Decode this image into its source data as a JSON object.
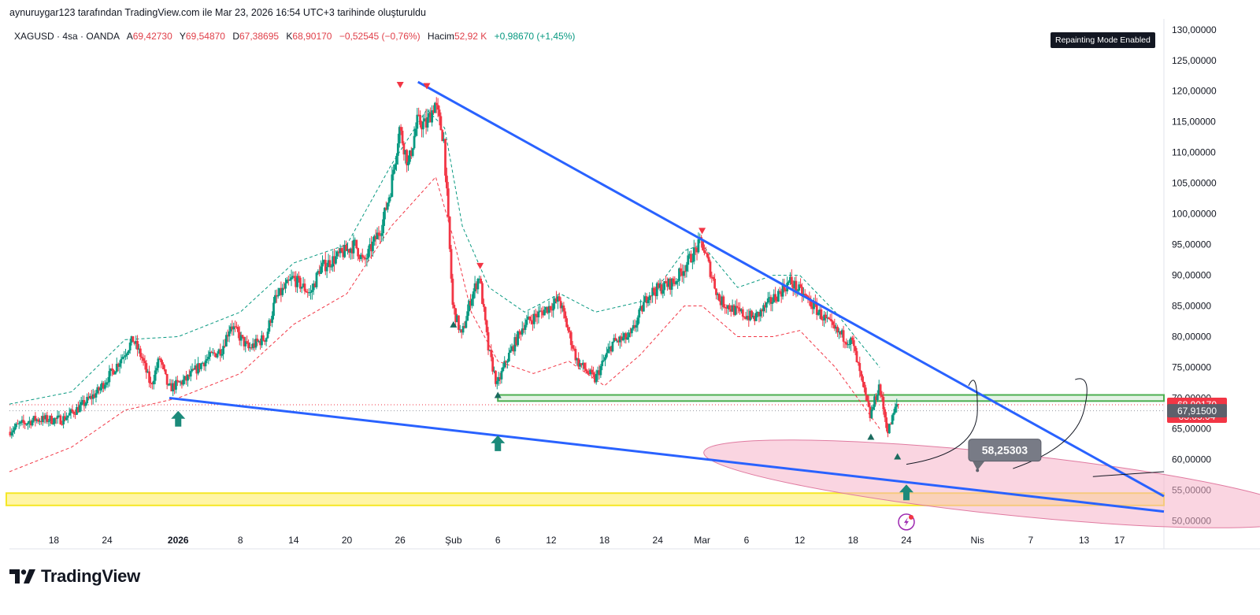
{
  "header": {
    "caption": "aynuruygar123 tarafından TradingView.com ile Mar 23, 2026 16:54 UTC+3 tarihinde oluşturuldu",
    "badge": "Repainting Mode Enabled"
  },
  "legend": {
    "symbol": "XAGUSD · 4sa · OANDA",
    "open_label": "A",
    "open": "69,42730",
    "high_label": "Y",
    "high": "69,54870",
    "low_label": "D",
    "low": "67,38695",
    "close_label": "K",
    "close": "68,90170",
    "change": "−0,52545 (−0,76%)",
    "volume_label": "Hacim",
    "volume": "52,92 K",
    "vol_change": "+0,98670 (+1,45%)"
  },
  "footer": {
    "brand": "TradingView"
  },
  "colors": {
    "up": "#089981",
    "down": "#f23645",
    "trend": "#2962ff",
    "support_zone": "#f5e50f",
    "target_zone": "#f6b3c8",
    "box": "#4caf50"
  },
  "chart_data": {
    "type": "candlestick",
    "symbol": "XAGUSD",
    "timeframe": "4sa",
    "y_axis": {
      "range": [
        48.5,
        131
      ],
      "ticks": [
        50,
        55,
        60,
        65,
        70,
        75,
        80,
        85,
        90,
        95,
        100,
        105,
        110,
        115,
        120,
        125,
        130
      ],
      "tick_labels": [
        "50,00000",
        "55,00000",
        "60,00000",
        "65,00000",
        "70,00000",
        "75,00000",
        "80,00000",
        "85,00000",
        "90,00000",
        "95,00000",
        "100,00000",
        "105,00000",
        "110,00000",
        "115,00000",
        "120,00000",
        "125,00000",
        "130,00000"
      ]
    },
    "x_axis": {
      "range": [
        "2025-12-13",
        "2026-04-22"
      ],
      "ticks": [
        {
          "date": "2025-12-18",
          "label": "18"
        },
        {
          "date": "2025-12-24",
          "label": "24"
        },
        {
          "date": "2026-01-01",
          "label": "2026",
          "bold": true
        },
        {
          "date": "2026-01-08",
          "label": "8"
        },
        {
          "date": "2026-01-14",
          "label": "14"
        },
        {
          "date": "2026-01-20",
          "label": "20"
        },
        {
          "date": "2026-01-26",
          "label": "26"
        },
        {
          "date": "2026-02-01",
          "label": "Şub"
        },
        {
          "date": "2026-02-06",
          "label": "6"
        },
        {
          "date": "2026-02-12",
          "label": "12"
        },
        {
          "date": "2026-02-18",
          "label": "18"
        },
        {
          "date": "2026-02-24",
          "label": "24"
        },
        {
          "date": "2026-03-01",
          "label": "Mar"
        },
        {
          "date": "2026-03-06",
          "label": "6"
        },
        {
          "date": "2026-03-12",
          "label": "12"
        },
        {
          "date": "2026-03-18",
          "label": "18"
        },
        {
          "date": "2026-03-24",
          "label": "24"
        },
        {
          "date": "2026-04-01",
          "label": "Nis"
        },
        {
          "date": "2026-04-07",
          "label": "7"
        },
        {
          "date": "2026-04-13",
          "label": "13"
        },
        {
          "date": "2026-04-17",
          "label": "17"
        }
      ]
    },
    "price_path": [
      [
        "2025-12-13",
        64.5
      ],
      [
        "2025-12-14",
        65.5
      ],
      [
        "2025-12-16",
        66.5
      ],
      [
        "2025-12-19",
        66.5
      ],
      [
        "2025-12-21",
        68.5
      ],
      [
        "2025-12-23",
        71.0
      ],
      [
        "2025-12-25",
        75.0
      ],
      [
        "2025-12-27",
        79.5
      ],
      [
        "2025-12-28",
        76.5
      ],
      [
        "2025-12-29",
        72.0
      ],
      [
        "2025-12-30",
        76.5
      ],
      [
        "2025-12-31",
        71.5
      ],
      [
        "2026-01-02",
        73.0
      ],
      [
        "2026-01-04",
        76.0
      ],
      [
        "2026-01-06",
        78.0
      ],
      [
        "2026-01-07",
        82.0
      ],
      [
        "2026-01-09",
        78.0
      ],
      [
        "2026-01-11",
        80.0
      ],
      [
        "2026-01-12",
        86.0
      ],
      [
        "2026-01-14",
        89.5
      ],
      [
        "2026-01-16",
        87.0
      ],
      [
        "2026-01-17",
        91.0
      ],
      [
        "2026-01-19",
        93.0
      ],
      [
        "2026-01-21",
        95.0
      ],
      [
        "2026-01-22",
        92.0
      ],
      [
        "2026-01-24",
        98.0
      ],
      [
        "2026-01-25",
        104.0
      ],
      [
        "2026-01-26",
        114.0
      ],
      [
        "2026-01-27",
        108.0
      ],
      [
        "2026-01-28",
        115.0
      ],
      [
        "2026-01-29",
        114.5
      ],
      [
        "2026-01-30",
        118.0
      ],
      [
        "2026-01-31",
        112.0
      ],
      [
        "2026-02-01",
        85.0
      ],
      [
        "2026-02-02",
        80.0
      ],
      [
        "2026-02-03",
        86.0
      ],
      [
        "2026-02-04",
        90.0
      ],
      [
        "2026-02-05",
        78.0
      ],
      [
        "2026-02-06",
        72.0
      ],
      [
        "2026-02-07",
        76.0
      ],
      [
        "2026-02-09",
        82.0
      ],
      [
        "2026-02-11",
        84.0
      ],
      [
        "2026-02-13",
        86.0
      ],
      [
        "2026-02-15",
        76.0
      ],
      [
        "2026-02-17",
        73.0
      ],
      [
        "2026-02-19",
        79.0
      ],
      [
        "2026-02-21",
        80.0
      ],
      [
        "2026-02-23",
        87.0
      ],
      [
        "2026-02-26",
        89.0
      ],
      [
        "2026-03-01",
        95.5
      ],
      [
        "2026-03-03",
        86.0
      ],
      [
        "2026-03-05",
        84.0
      ],
      [
        "2026-03-07",
        83.0
      ],
      [
        "2026-03-09",
        86.0
      ],
      [
        "2026-03-11",
        89.0
      ],
      [
        "2026-03-13",
        86.0
      ],
      [
        "2026-03-16",
        81.0
      ],
      [
        "2026-03-18",
        79.0
      ],
      [
        "2026-03-19",
        73.0
      ],
      [
        "2026-03-20",
        67.0
      ],
      [
        "2026-03-21",
        72.0
      ],
      [
        "2026-03-22",
        64.5
      ],
      [
        "2026-03-23",
        68.9
      ]
    ],
    "envelope_upper": [
      [
        "2025-12-13",
        69.0
      ],
      [
        "2025-12-20",
        71.0
      ],
      [
        "2025-12-26",
        79.5
      ],
      [
        "2026-01-01",
        80.0
      ],
      [
        "2026-01-08",
        84.0
      ],
      [
        "2026-01-14",
        92.0
      ],
      [
        "2026-01-20",
        95.0
      ],
      [
        "2026-01-25",
        108.0
      ],
      [
        "2026-01-29",
        117.0
      ],
      [
        "2026-01-31",
        114.0
      ],
      [
        "2026-02-02",
        98.0
      ],
      [
        "2026-02-05",
        88.0
      ],
      [
        "2026-02-09",
        84.0
      ],
      [
        "2026-02-13",
        87.0
      ],
      [
        "2026-02-17",
        84.0
      ],
      [
        "2026-02-23",
        86.0
      ],
      [
        "2026-02-27",
        94.0
      ],
      [
        "2026-03-01",
        95.0
      ],
      [
        "2026-03-05",
        88.0
      ],
      [
        "2026-03-09",
        90.0
      ],
      [
        "2026-03-12",
        90.0
      ],
      [
        "2026-03-16",
        84.0
      ],
      [
        "2026-03-21",
        75.0
      ]
    ],
    "envelope_lower": [
      [
        "2025-12-13",
        58.0
      ],
      [
        "2025-12-20",
        62.0
      ],
      [
        "2025-12-26",
        68.0
      ],
      [
        "2026-01-01",
        70.0
      ],
      [
        "2026-01-08",
        74.0
      ],
      [
        "2026-01-14",
        82.0
      ],
      [
        "2026-01-20",
        87.0
      ],
      [
        "2026-01-25",
        98.0
      ],
      [
        "2026-01-30",
        106.0
      ],
      [
        "2026-02-01",
        96.0
      ],
      [
        "2026-02-03",
        84.0
      ],
      [
        "2026-02-06",
        76.0
      ],
      [
        "2026-02-10",
        74.0
      ],
      [
        "2026-02-14",
        76.0
      ],
      [
        "2026-02-18",
        72.0
      ],
      [
        "2026-02-22",
        77.0
      ],
      [
        "2026-02-27",
        85.0
      ],
      [
        "2026-03-01",
        85.0
      ],
      [
        "2026-03-05",
        80.0
      ],
      [
        "2026-03-09",
        80.0
      ],
      [
        "2026-03-12",
        81.0
      ],
      [
        "2026-03-16",
        75.0
      ],
      [
        "2026-03-21",
        65.0
      ]
    ],
    "trendlines": [
      {
        "name": "upper",
        "from": [
          "2026-01-28",
          121.5
        ],
        "to": [
          "2026-04-22",
          54.0
        ]
      },
      {
        "name": "lower",
        "from": [
          "2025-12-31",
          70.0
        ],
        "to": [
          "2026-04-22",
          51.5
        ]
      }
    ],
    "zones": [
      {
        "name": "support-band",
        "y": [
          52.5,
          54.5
        ],
        "x": [
          "2025-12-13",
          "2026-04-22"
        ]
      },
      {
        "name": "resistance-box",
        "y": [
          69.5,
          70.5
        ],
        "x": [
          "2026-02-06",
          "2026-04-22"
        ]
      },
      {
        "name": "target-ellipse",
        "center": [
          "2026-04-04",
          56.0
        ],
        "rx_days": 34,
        "ry_price": 5.0
      }
    ],
    "markers": {
      "arrows_up": [
        [
          "2026-01-01",
          66.5
        ],
        [
          "2026-02-06",
          62.5
        ],
        [
          "2026-03-24",
          54.5
        ]
      ],
      "triangles_down": [
        [
          "2026-01-26",
          121.0
        ],
        [
          "2026-01-29",
          120.8
        ],
        [
          "2026-02-04",
          91.5
        ],
        [
          "2026-03-01",
          97.2
        ]
      ],
      "triangles_up": [
        [
          "2026-02-01",
          82.0
        ],
        [
          "2026-02-06",
          70.5
        ],
        [
          "2026-03-20",
          63.7
        ],
        [
          "2026-03-23",
          60.5
        ]
      ]
    },
    "target_label": {
      "at": [
        "2026-03-31",
        61.5
      ],
      "point": [
        "2026-04-01",
        58.2
      ],
      "text": "58,25303"
    },
    "price_labels": [
      {
        "value": 68.9017,
        "text": "68,90170",
        "sub": "03:05:04",
        "color": "#f23645"
      },
      {
        "value": 67.915,
        "text": "67,91500",
        "color": "#5d606b"
      }
    ],
    "last_price": 68.9017
  }
}
